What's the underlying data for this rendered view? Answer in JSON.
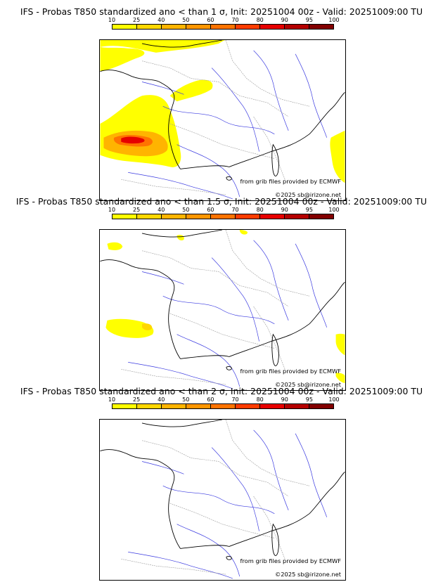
{
  "panels": [
    {
      "title": "IFS - Probas T850  standardized ano < than 1 σ, Init: 20251004 00z - Valid: 20251009:00 TU",
      "source_credit": "from grib files provided by ECMWF",
      "copyright": "©2025 sb@irizone.net"
    },
    {
      "title": "IFS - Probas T850  standardized ano < than 1.5 σ, Init: 20251004 00z - Valid: 20251009:00 TU",
      "source_credit": "from grib files provided by ECMWF",
      "copyright": "©2025 sb@irizone.net"
    },
    {
      "title": "IFS - Probas T850  standardized ano < than 2 σ, Init: 20251004 00z - Valid: 20251009:00 TU",
      "source_credit": "from grib files provided by ECMWF",
      "copyright": "©2025 sb@irizone.net"
    }
  ],
  "colorbar": {
    "levels": [
      "10",
      "25",
      "40",
      "50",
      "60",
      "70",
      "80",
      "90",
      "95",
      "100"
    ],
    "colors": [
      "#ffff00",
      "#ffd700",
      "#ffb400",
      "#ff9600",
      "#ff7300",
      "#ff3c00",
      "#e60000",
      "#b40000",
      "#820000"
    ]
  }
}
